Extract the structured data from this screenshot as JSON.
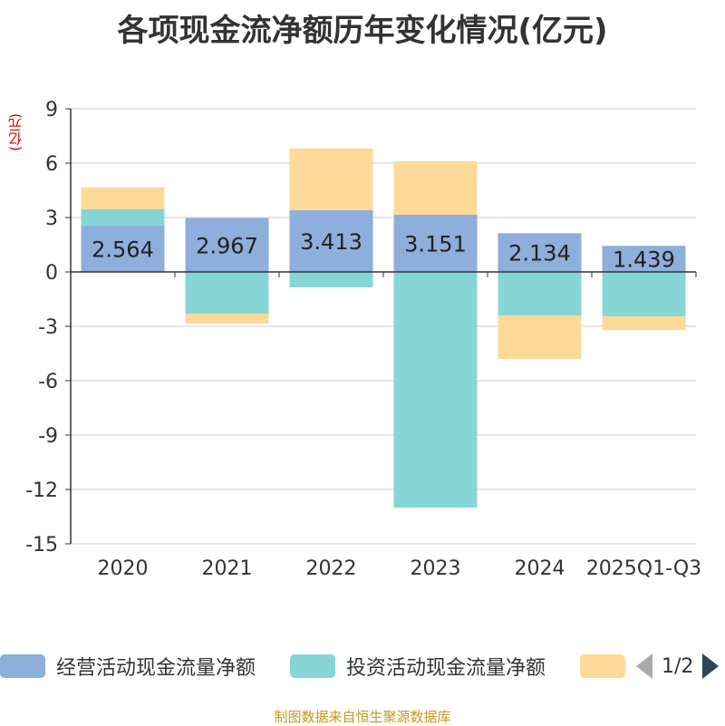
{
  "chart_data": {
    "type": "bar",
    "stacked": true,
    "title": "各项现金流净额历年变化情况(亿元)",
    "ylabel": "(亿元)",
    "ylim": [
      -15,
      9
    ],
    "yticks": [
      9,
      6,
      3,
      0,
      -3,
      -6,
      -9,
      -12,
      -15
    ],
    "categories": [
      "2020",
      "2021",
      "2022",
      "2023",
      "2024",
      "2025Q1-Q3"
    ],
    "series": [
      {
        "name": "经营活动现金流量净额",
        "color": "#8eaedb",
        "values": [
          2.564,
          2.967,
          3.413,
          3.151,
          2.134,
          1.439
        ],
        "show_labels": true
      },
      {
        "name": "投资活动现金流量净额",
        "color": "#86d5d7",
        "values": [
          0.9,
          -2.3,
          -0.85,
          -13.0,
          -2.4,
          -2.45
        ],
        "show_labels": false
      },
      {
        "name": "",
        "color": "#ffd997",
        "values": [
          1.2,
          -0.55,
          3.4,
          2.95,
          -2.4,
          -0.75
        ],
        "show_labels": false
      }
    ],
    "legend_position": "bottom"
  },
  "legend": {
    "items": [
      "经营活动现金流量净额",
      "投资活动现金流量净额",
      ""
    ],
    "pager": "1/2"
  },
  "source": "制图数据来自恒生聚源数据库"
}
